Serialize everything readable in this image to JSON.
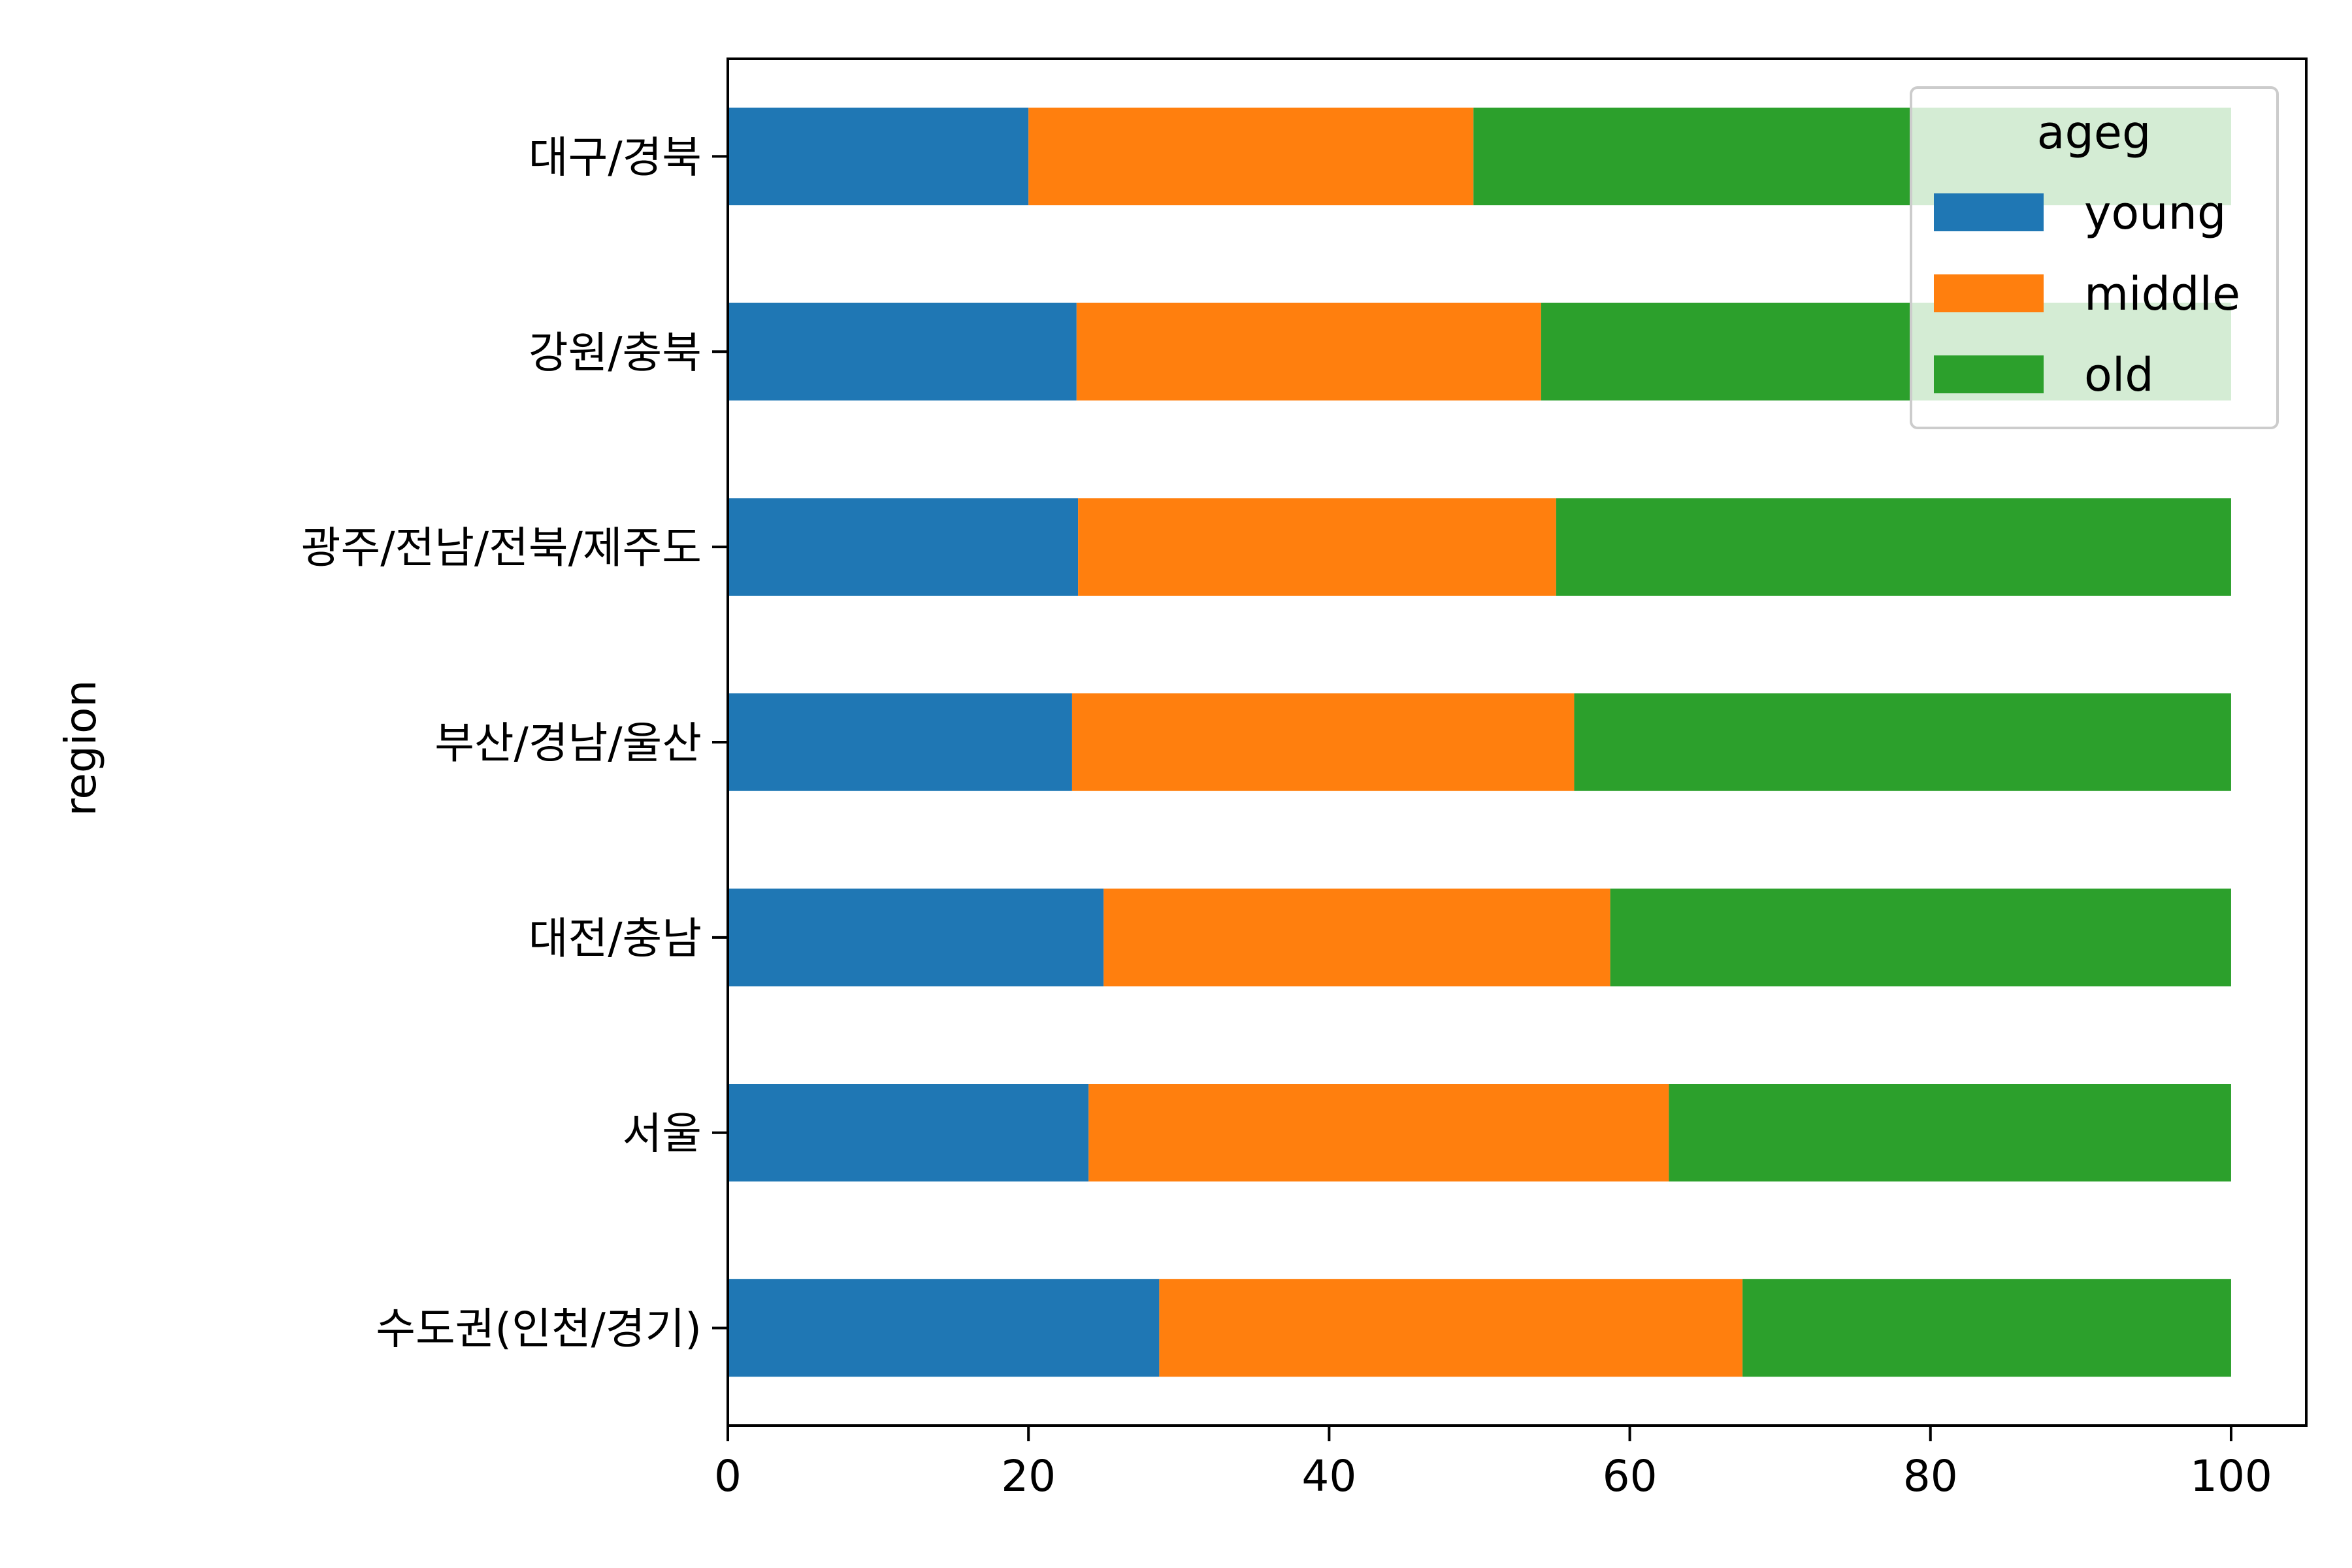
{
  "chart_data": {
    "type": "bar",
    "orientation": "horizontal",
    "stacked": true,
    "title": "",
    "xlabel": "",
    "ylabel": "region",
    "xlim": [
      0,
      105
    ],
    "xticks": [
      0,
      20,
      40,
      60,
      80,
      100
    ],
    "categories": [
      "대구/경북",
      "강원/충북",
      "광주/전남/전북/제주도",
      "부산/경남/울산",
      "대전/충남",
      "서울",
      "수도권(인천/경기)"
    ],
    "series": [
      {
        "name": "young",
        "color": "#1f77b4",
        "values": [
          20.0,
          23.2,
          23.3,
          22.9,
          25.0,
          24.0,
          28.7
        ]
      },
      {
        "name": "middle",
        "color": "#ff7f0e",
        "values": [
          29.6,
          30.9,
          31.8,
          33.4,
          33.7,
          38.6,
          38.8
        ]
      },
      {
        "name": "old",
        "color": "#2ca02c",
        "values": [
          50.4,
          45.9,
          44.9,
          43.7,
          41.3,
          37.4,
          32.5
        ]
      }
    ],
    "legend": {
      "title": "ageg",
      "position": "upper right"
    },
    "grid": false
  }
}
